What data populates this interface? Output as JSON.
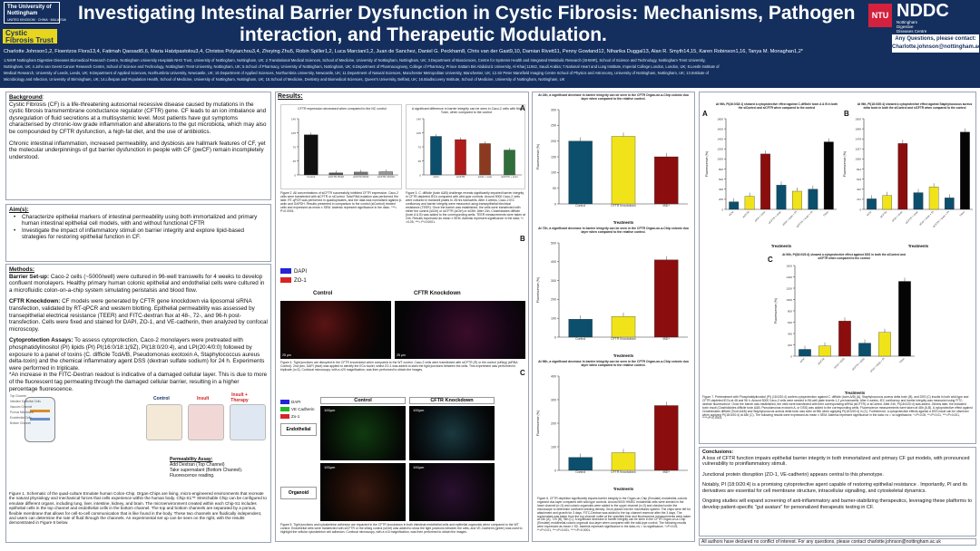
{
  "header": {
    "title_line1": "Investigating Intestinal Barrier Dysfunction in Cystic Fibrosis: Mechanisms, Pathogen",
    "title_line2": "interaction, and Therapeutic Modulation.",
    "authors": "Charlotte Johnson1,2, Fioentzos Flora13,4, Fatimah Qassadi5,6, Maria Hatzipastolou3,4, Christos Polytarchou3,4, Zheying Zhu5, Robin Spiller1,2, Luca Marciani1,2, Juan de Sanchez, Daniel G. Peckham8, Chris van der Gast9,10, Damian Rivett11, Penny Gowland12, Niharika Duggal13, Alan R. Smyth14,15, Karen Robinson1,16, Tanya M. Monaghan1,2*",
    "affil1": "1.NIHR Nottingham Digestive Diseases Biomedical Research Centre, Nottingham University Hospitals NHS Trust, University of Nottingham, Nottingham, UK; 2.Translational Medical Sciences, School of Medicine, University of Nottingham, Nottingham, UK; 3.Department of Biosciences, Centre for Systems Health and Integrated Metabolic Research (SHIMR), School of Science and Technology, Nottingham Trent University,",
    "affil2": "Nottingham, UK; 4.John van Geest Cancer Research Centre, School of Science and Technology, Nottingham Trent University, Nottingham, UK; 5.School of Pharmacy, University of Nottingham, Nottingham, UK; 6.Department of Pharmacognosy, College of Pharmacy, Prince Sattam Bin Abdulaziz University, Al-Kharj 11942, Saudi Arabia; 7.National Heart and Lung Institute, Imperial College London, London, UK; 8.Leeds Institute of",
    "affil3": "Medical Research, University of Leeds, Leeds, UK; 9.Department of Applied Sciences, Northumbria University, Newcastle, UK; 10.Department of Applied Sciences, Northumbria University, Newcastle, UK; 11.Department of Natural Sciences, Manchester Metropolitan University, Manchester, UK; 12.Sir Peter Mansfield Imaging Centre School of Physics and Astronomy, University of Nottingham, Nottingham, UK; 13.Institute of",
    "affil4": "Microbiology and Infection, University of Birmingham, UK; 14.Lifespan and Population Health, School of Medicine, University of Nottingham, Nottingham, UK; 15.School of Medicine, Dentistry and Biomedical Sciences, Queen's University, Belfast, UK; 16.Biodiscovery Institute, School of Medicine, University of Nottingham, Nottingham, UK",
    "uon_logo": "The University of Nottingham",
    "uon_sub": "UNITED KINGDOM · CHINA · MALAYSIA",
    "cf_logo": "Cystic Fibrosis Trust",
    "ntu_logo": "NTU",
    "nddc_logo": "NDDC",
    "nddc_sub1": "Nottingham",
    "nddc_sub2": "Digestive",
    "nddc_sub3": "Diseases Centre",
    "enquiry1": "Any Questions, please contact:",
    "enquiry2": "Charlotte.johnson@nottingham.ac.uk"
  },
  "background": {
    "heading": "Background",
    "p1": "Cystic Fibrosis (CF) is a life-threatening autosomal recessive disease caused by mutations in the cystic fibrosis transmembrane conductance regulator (CFTR) gene. CF leads to an ion imbalance and dysregulation of fluid secretions at a multisystemic level. Most patients have gut symptoms characterised by chronic-low grade inflammation and alterations to the gut microbiota, which may also be compounded by CFTR dysfunction, a high-fat diet, and the use of antibiotics.",
    "p2": "Chronic intestinal inflammation, increased permeability, and dysbiosis are hallmark features of CF, yet the molecular underpinnings of gut barrier dysfunction in people with CF (pwCF) remain incompletely understood."
  },
  "aims": {
    "heading": "Aim(s):",
    "a1": "Characterize epithelial markers of intestinal permeability using both immortalized and primary human intestinal epithelial cell models, with and without functional CFTR",
    "a2": "Investigate the impact of inflammatory stimuli on barrier integrity and explore lipid-based strategies for restoring epithelial function in CF."
  },
  "methods": {
    "heading": "Methods:",
    "setup_label": "Barrier Set-up:",
    "setup": "Caco-2 cells (~5000/well) were cultured in 96-well transwells for 4 weeks to develop confluent monolayers. Healthy primary human colonic epithelial and endothelial cells were cultured in a microfluidic colon-on-a-chip system simulating peristalsis and blood flow.",
    "ko_label": "CFTR Knockdown:",
    "ko": "CF models were generated by CFTR gene knockdown via liposomal siRNA transfection, validated by RT-qPCR and western blotting. Epithelial permeability was assessed by transepithelial electrical resistance (TEER) and FITC-dextran flux at 48-, 72-, and 96-h post-transfection. Cells were fixed and stained for DAPI, ZO-1, and VE-cadherin, then analyzed by confocal microscopy.",
    "cyto_label": "Cytoprotection Assays:",
    "cyto": "To assess cytoprotection, Caco-2 monolayers were pretreated with phosphatidylinositol (PI) lipids (PI) PI(16:0/18:1(9Z), PI(18:0/20:4), and LPI(20:4/0:0) followed by exposure to a panel of toxins (C. difficile TcdA/B, Pseudomonas exotoxin A, Staphylococcus aureus delta-toxin) and the chemical inflammatory agent DSS (dextran sulfate sodium) for 24 h. Experiments were performed in triplicate.",
    "note": "*An increase in the FITC-Dextran readout is indicative of a damaged cellular layer. This is due to more of the fluorescent tag permeating through the damaged cellular barrier, resulting in a higher percentage fluorescence."
  },
  "fig1": {
    "tab_control": "Control",
    "tab_insult": "Insult",
    "tab_therapy": "Insult + Therapy",
    "legend": [
      "Top Channel",
      "Intestine Epithelial Cells",
      "Vacuum Channel",
      "Porous Membrane",
      "Endothelial Cells",
      "Bottom Channel"
    ],
    "perm_title": "Permeability Assay:",
    "perm1": "Add Dextran (Top Channel)",
    "perm2": "Take supernatant (Bottom Channel).",
    "perm3": "Fluorescence reading.",
    "caption": "Figure 1. Schematic of the quad-culture Emulate human Colon-Chip. Organ-Chips are living, micro-engineered environments that recreate the natural physiology and mechanical forces that cells experience within the human body. Chip-S1™ Stretchable Chip can be configured to emulate different organs, including lung, liver, intestine, kidney, and brain. The microenvironment created within each Chip-S1 includes epithelial cells in the top channel and endothelial cells in the bottom channel. The top and bottom channels are separated by a porous, flexible membrane that allows for cell-to-cell communication that is like found in the body. These two channels are fluidically independent, and users can determine the rate of fluid through the channels. An experimental set up can be seen on the right, with the results demonstrated in Figure 6 below."
  },
  "results": {
    "heading": "Results",
    "fig2_chart_title": "CFTR expression decreased when compared to the NC control",
    "fig2_caption": "Figure 2. All concentrations of siCFTR successfully inhibited CFTR expression. Caco-2 cells were transfected with siCFTR or siControl. Total RNA isolation was performed 5hr later. RT-qPCR was performed in quadruplicates, and the data was normalised against β-actin and GAPDH. Results presented in comparison to the control (siControl) treated cells and expressed as mean ± SEM. Asterisk represent significance in the data ; ***= P<0.0001.",
    "fig3_chart_title": "A significant difference in barrier integrity can be seen in Caco-2 cells with 6hr Toxin, when compared to the control",
    "fig3_caption": "Figure 3. C. difficile (toxin A&B) challenge reveals significantly impaired barrier integrity in CFTR-depleted IECs compared with wild-type controls. Around 5000 Caco-2 cells were cultured in transwell plates to 28 hrs transwells. After 4 weeks, Caco-2 IEC confluency and barrier integrity were measured using transepithelial electrical resistance (TEER). Once the barrier was established, the cells were transfected with either the control (siCtrl) or siCFTR (siCtrl) or siCftrl. After 24h, Clostridioides difficile (toxin A & B) was added to the corresponding wells. TEER measurements were taken at 24h. Results expressed as mean ± SEM. Asterisk represent significance in the data; *=<0.05, ***= P<0.0001.",
    "fig4_dapi": "DAPI",
    "fig4_zo1": "ZO-1",
    "fig4_control": "Control",
    "fig4_knock": "CFTR Knockdown",
    "scale": "25 µm",
    "fig4_caption": "Figure 4. Tight junctions are disrupted in the CFTR knockdown when compared to the WT control. Caco-2 cells were transfected with siCFTR (R) or the control (siNeg) (siRNA Control). 2nd (sec, DAPI (blue) was applied to identify the ECs nuclei, whilst ZO-1 was added to stain the tight junctions between the cells. This experiment was performed in triplicate (n=3). Confocal microscopy, with a x20 magnification, was then performed to obtain the images.",
    "fig5_dapi": "DAPI",
    "fig5_vecad": "VE Cadherin",
    "fig5_zo1": "Zo-1",
    "fig5_endo": "Endothelial",
    "fig5_org": "Organoid",
    "fig5_scale": "100µm",
    "fig5_caption": "Figure 5. Tight junctions and cytoskeleton adhesion are impacted in the CFTR knockdown in both intestinal endothelial cells and epithelial organoids when compared to the WT control. Endothelial cells were transfected with siCFTR or the siNeg control (siCtrl) was added to show the tight junctions between the cells, and VE-Cadherin (green) was used to highlight the cellular cytoskeleton cell adhesion. Confocal microscopy, with a x10 magnification, was then performed to obtain the images."
  },
  "fig6": {
    "A_title": "At 24h, a significant decrease in barrier integrity can be seen in the CFTR Organ-on-a-Chip colonic duo layer when compared to the relative control.",
    "B_title": "At 72h, a significant decrease in barrier integrity can be seen in the CFTR Organ-on-a-Chip colonic duo layer when compared to the relative control.",
    "C_title": "At 96h, a significant decrease in barrier integrity can be seen in the CFTR Organ-on-a-Chip colonic duo layer when compared to the relative control.",
    "xlabel": "Treatments",
    "ylabel": "Fluorescence (%)",
    "cats": [
      "Control",
      "CFTR Knockdown",
      "IBD+"
    ],
    "caption": "Figure 6. CFTR depletion significantly impairs barrier integrity in the Organ-on-Chip (Emulate) endothelial–colonic organoid duo-layer compared with wild-type controls. Around 5000 HIMEC endothelial cells were seeded in the lower channel (n=3) and colonic organoids were added to the upper channel (n=3) and checked under the microscope to determine confluent seeding density. Once placed into the microfluidic system. The chips were left for attachment and growth for 3 days. FITC-Dextran was added to the top channel reservoir after the 3 days. The supernatant was taken from the top channel outlet at the specified time and fluorescence measurements were taken at 24h (A), 72h (B), 96h (C). A significant decrease in barrier integrity can be seen in the CFTR Organ-on-a-Chip (Emulate) endothelial-colonic organoid duo-layer when compared with the wild-type control. The following results were expressed as mean ± SD. Asterisk represent significance in the data; ns = no significance, *=P<0.05, **=P<0.01, ***=P<0.001, ****=P<0.0001."
  },
  "fig7": {
    "A_title": "At 96h, PI(16:0/18:1) showed a cytoprotective effect against C.difficile toxin A & B in both the siControl and siCFTR when compared to the control",
    "B_title": "At 96h, PI(18:0/20:4) showed a cytoprotective effect against Staphylococcus aureus delta toxin in both the siControl and siCFTR when compared to the control",
    "C_title": "At 96h, PI(18:0/20:4) showed a cytoprotective effect against DSS in both the siControl and siCFTR when compared to the control",
    "xlabel": "Treatments",
    "ylabel": "Fluorescence (%)",
    "caption": "Figure 7. Pretreatment with Phosphatidylinositol (PI) (18:0/20:4) confers cytoprotection against C. difficile (toxin A/B) (A), Staphylococcus aureus delta toxin (B), and DSS (C) insults in both wild-type and CFTR-depleted IECs at 48 and 96 h. Around 5000 Caco-2 cells were seeded in 96-well plate inserts 1.2 µm transwells. After 4 weeks, IEC confluency and barrier integrity was measured using FITC-dextran fluorescence. Once the barrier was established, the cells were transfected with their corresponding siRNA (siCFTR) or siControl. After 24h, PI(18:0/20:4) was added. 15mins later, the indicated toxin insult (Clostridioides difficile toxin A&B, Pseudomonas exotoxin A, or DSS) was added to the corresponding wells. Fluorescence measurements were taken at 48h (A-B). A cytoprotective effect against Clostridioides difficile (Toxin A&B) and Staphylococcus aureus delta toxin was seen at 96h when applying PI(18:0/20:4) in (C). Furthermore, a cytoprotective effects against a DSS insult can be observed when applying PI(18:0/20:4) at 48h (C). The following results were expressed as mean ± SEM. Asterisk represent significance in the data: ns = no significance, *=P<0.05, **=P<0.01, ***=P<0.001, ****=P<0.0001."
  },
  "conclusions": {
    "heading": "Conclusions:",
    "c1": "A loss of CFTR function impairs epithelial barrier integrity in both immortalized and primary CF gut models, with pronounced vulnerability to proinflammatory stimuli.",
    "c2": "Junctional protein disruption (ZO-1, VE-cadherin) appears central to this phenotype.",
    "c3": "Notably, PI (18:0/20:4) is a promising cytoprotective agent capable of restoring epithelial resistance . Importantly, PI and its derivatives are essential for cell membrane structure, intracellular signalling, and cytoskeletal dynamics.",
    "c4": "Ongoing studies will expand screening of anti-inflammatory and barrier-stabilizing therapeutics, leveraging these platforms to develop patient-specific \"gut avatars\" for personalized therapeutic testing in CF."
  },
  "footer": "All authors have declared no conflict of interest. For any questions, please contact charlotte.johnson@nottingham.ac.uk",
  "chart_data": [
    {
      "type": "bar",
      "title": "CFTR expression decreased when compared to the NC control",
      "categories": [
        "Control",
        "siCFTR 25nM",
        "siCFTR 50nM",
        "siCFTR 100nM"
      ],
      "values": [
        100,
        5,
        7,
        8
      ],
      "colors": [
        "#111111",
        "#555555",
        "#777777",
        "#999999"
      ],
      "ylim": [
        0,
        140
      ]
    },
    {
      "type": "bar",
      "title": "A significant difference in barrier integrity can be seen in Caco-2 cells with 6hr Toxin, when compared to the control",
      "categories": [
        "siCtrl",
        "siCFTR",
        "siCtrl + toxin",
        "siCFTR + toxin"
      ],
      "values": [
        96,
        88,
        78,
        62
      ],
      "colors": [
        "#0b4f6c",
        "#b01c1c",
        "#8b3a1f",
        "#2f6e3a"
      ],
      "ylim": [
        0,
        140
      ]
    },
    {
      "type": "bar",
      "title": "A",
      "categories": [
        "Control",
        "CFTR Knockdown",
        "IBD+"
      ],
      "values": [
        200,
        215,
        150
      ],
      "colors": [
        "#0b4f6c",
        "#f0e31a",
        "#8b0d0d"
      ],
      "ylim": [
        0,
        300
      ]
    },
    {
      "type": "bar",
      "title": "B",
      "categories": [
        "Control",
        "CFTR Knockdown",
        "IBD+"
      ],
      "values": [
        95,
        110,
        410
      ],
      "colors": [
        "#0b4f6c",
        "#f0e31a",
        "#8b0d0d"
      ],
      "ylim": [
        0,
        500
      ]
    },
    {
      "type": "bar",
      "title": "C",
      "categories": [
        "Control",
        "CFTR Knockdown",
        "IBD+"
      ],
      "values": [
        55,
        75,
        275
      ],
      "colors": [
        "#0b4f6c",
        "#f0e31a",
        "#8b0d0d"
      ],
      "ylim": [
        0,
        400
      ]
    },
    {
      "type": "bar",
      "title": "A",
      "categories": [
        "siCtrl",
        "siCFTR",
        "siCtrl + toxin",
        "siCFTR + toxin",
        "siCtrl + toxin + PI",
        "siCFTR + toxin + PI",
        "Triton"
      ],
      "values": [
        150,
        260,
        1100,
        480,
        360,
        400,
        1340
      ],
      "colors": [
        "#0b4f6c",
        "#f0e31a",
        "#8b0d0d",
        "#0b4f6c",
        "#f0e31a",
        "#0b4f6c",
        "#050505"
      ],
      "ylim": [
        0,
        1800
      ]
    },
    {
      "type": "bar",
      "title": "B",
      "categories": [
        "siCtrl",
        "siCFTR",
        "siCtrl + toxin",
        "siCFTR + toxin",
        "siCtrl + toxin + PI",
        "siCFTR + toxin + PI",
        "Triton"
      ],
      "values": [
        220,
        290,
        1380,
        350,
        470,
        240,
        1620
      ],
      "colors": [
        "#0b4f6c",
        "#f0e31a",
        "#8b0d0d",
        "#0b4f6c",
        "#f0e31a",
        "#0b4f6c",
        "#050505"
      ],
      "ylim": [
        0,
        1900
      ]
    },
    {
      "type": "bar",
      "title": "C",
      "categories": [
        "siCtrl",
        "siCFTR",
        "siCtrl + DSS",
        "siCFTR + DSS",
        "siCtrl + DSS + PI",
        "Triton"
      ],
      "values": [
        120,
        180,
        620,
        230,
        420,
        1320
      ],
      "colors": [
        "#0b4f6c",
        "#f0e31a",
        "#8b0d0d",
        "#0b4f6c",
        "#f0e31a",
        "#050505"
      ],
      "ylim": [
        0,
        1600
      ]
    }
  ]
}
